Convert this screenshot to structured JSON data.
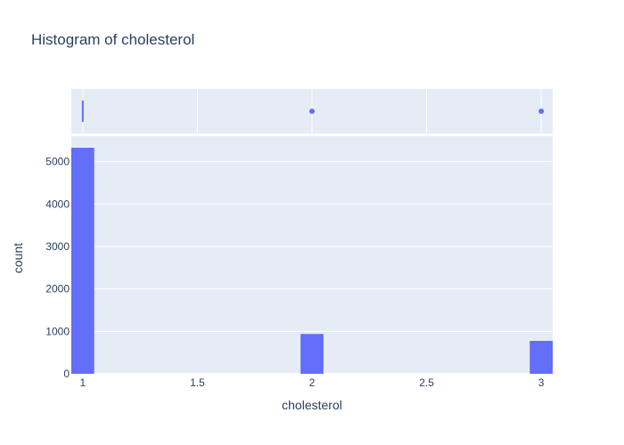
{
  "chart_data": {
    "type": "bar",
    "title": "Histogram of cholesterol",
    "xlabel": "cholesterol",
    "ylabel": "count",
    "bins": [
      {
        "x": 1,
        "count": 5327
      },
      {
        "x": 2,
        "count": 938
      },
      {
        "x": 3,
        "count": 776
      }
    ],
    "xlim": [
      0.95,
      3.05
    ],
    "ylim": [
      0,
      5600
    ],
    "xticks": [
      "1",
      "1.5",
      "2",
      "2.5",
      "3"
    ],
    "xtick_values": [
      1,
      1.5,
      2,
      2.5,
      3
    ],
    "yticks": [
      "0",
      "1000",
      "2000",
      "3000",
      "4000",
      "5000"
    ],
    "ytick_values": [
      0,
      1000,
      2000,
      3000,
      4000,
      5000
    ],
    "marginal": {
      "type": "box",
      "min": 1,
      "q1": 1,
      "median": 1,
      "q3": 1,
      "upper_fence": 1,
      "outliers": [
        2,
        3
      ]
    },
    "grid": true,
    "bar_color": "#636efa",
    "plot_bgcolor": "#e5ecf6"
  }
}
